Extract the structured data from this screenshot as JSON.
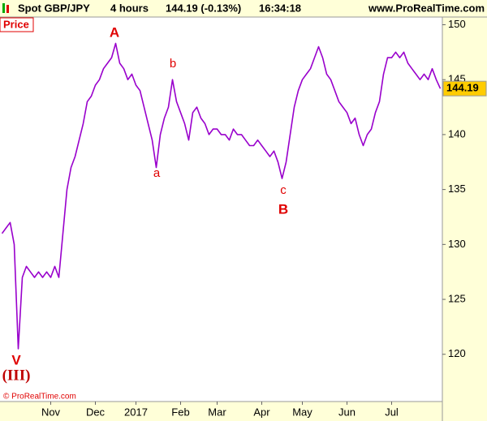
{
  "header": {
    "symbol": "Spot GBP/JPY",
    "timeframe": "4 hours",
    "quote": "144.19 (-0.13%)",
    "time": "16:34:18",
    "site": "www.ProRealTime.com"
  },
  "chart_data": {
    "type": "line",
    "panel_label": "Price",
    "copyright": "© ProRealTime.com",
    "color": "#9900cc",
    "annotations": [
      "A",
      "a",
      "b",
      "c",
      "B",
      "V",
      "(III)"
    ],
    "categories": [
      null,
      null,
      null,
      null,
      null,
      null,
      null,
      null,
      null,
      null,
      null,
      null,
      "Nov",
      null,
      null,
      null,
      null,
      null,
      null,
      null,
      null,
      null,
      null,
      "Dec",
      null,
      null,
      null,
      null,
      null,
      null,
      null,
      null,
      null,
      "2017",
      null,
      null,
      null,
      null,
      null,
      null,
      null,
      null,
      null,
      null,
      "Feb",
      null,
      null,
      null,
      null,
      null,
      null,
      null,
      null,
      "Mar",
      null,
      null,
      null,
      null,
      null,
      null,
      null,
      null,
      null,
      null,
      "Apr",
      null,
      null,
      null,
      null,
      null,
      null,
      null,
      null,
      null,
      "May",
      null,
      null,
      null,
      null,
      null,
      null,
      null,
      null,
      null,
      null,
      "Jun",
      null,
      null,
      null,
      null,
      null,
      null,
      null,
      null,
      null,
      null,
      "Jul",
      null,
      null,
      null,
      null,
      null,
      null,
      null,
      null,
      null,
      null,
      null,
      null
    ],
    "values": [
      131,
      131.5,
      132,
      130,
      120.5,
      127,
      128,
      127.5,
      127,
      127.5,
      127,
      127.5,
      127,
      128,
      127,
      131,
      135,
      137,
      138,
      139.5,
      141,
      143,
      143.5,
      144.5,
      145,
      146,
      146.5,
      147,
      148.3,
      146.5,
      146,
      145,
      145.5,
      144.5,
      144,
      142.5,
      141,
      139.5,
      137,
      140,
      141.5,
      142.5,
      145,
      143,
      142,
      141,
      139.5,
      142,
      142.5,
      141.5,
      141,
      140,
      140.5,
      140.5,
      140,
      140,
      139.5,
      140.5,
      140,
      140,
      139.5,
      139,
      139,
      139.5,
      139,
      138.5,
      138,
      138.5,
      137.5,
      136,
      137.5,
      140,
      142.5,
      144,
      145,
      145.5,
      146,
      147,
      148,
      147,
      145.5,
      145,
      144,
      143,
      142.5,
      142,
      141,
      141.5,
      140,
      139,
      140,
      140.5,
      142,
      143,
      145.5,
      147,
      147,
      147.5,
      147,
      147.5,
      146.5,
      146,
      145.5,
      145,
      145.5,
      145,
      146,
      145,
      144.19
    ],
    "ylim": [
      115.7,
      150.7
    ],
    "yticks": [
      120,
      125,
      130,
      135,
      140,
      145,
      150
    ]
  }
}
